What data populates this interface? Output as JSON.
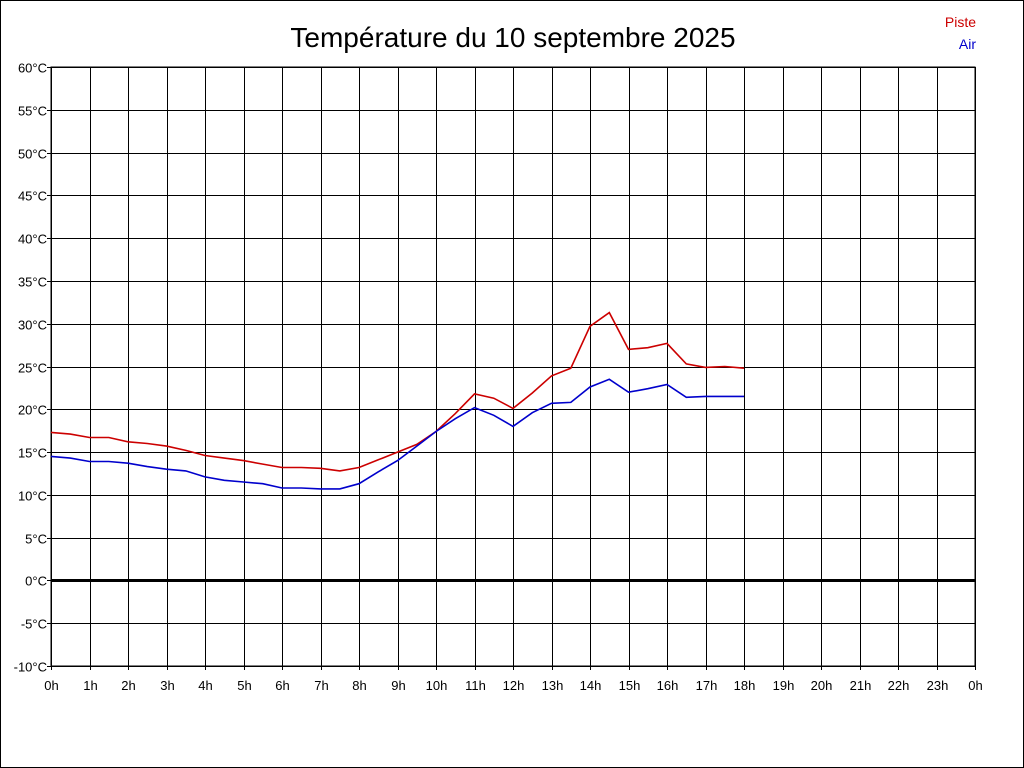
{
  "chart_data": {
    "type": "line",
    "title": "Température du 10 septembre 2025",
    "xlabel": "",
    "ylabel": "",
    "x_tick_labels": [
      "0h",
      "1h",
      "2h",
      "3h",
      "4h",
      "5h",
      "6h",
      "7h",
      "8h",
      "9h",
      "10h",
      "11h",
      "12h",
      "13h",
      "14h",
      "15h",
      "16h",
      "17h",
      "18h",
      "19h",
      "20h",
      "21h",
      "22h",
      "23h",
      "0h"
    ],
    "y_tick_labels": [
      "60°C",
      "55°C",
      "50°C",
      "45°C",
      "40°C",
      "35°C",
      "30°C",
      "25°C",
      "20°C",
      "15°C",
      "10°C",
      "5°C",
      "0°C",
      "-5°C",
      "-10°C"
    ],
    "xlim": [
      0,
      24
    ],
    "ylim": [
      -10,
      60
    ],
    "grid": true,
    "legend_position": "top-right",
    "series": [
      {
        "name": "Piste",
        "color": "#cc0000",
        "x": [
          0,
          0.5,
          1,
          1.5,
          2,
          2.5,
          3,
          3.5,
          4,
          4.5,
          5,
          5.5,
          6,
          6.5,
          7,
          7.5,
          8,
          8.5,
          9,
          9.5,
          10,
          10.5,
          11,
          11.5,
          12,
          12.5,
          13,
          13.5,
          14,
          14.5,
          15,
          15.5,
          16,
          16.5,
          17,
          17.5,
          18
        ],
        "values": [
          17.3,
          17.1,
          16.7,
          16.7,
          16.2,
          16.0,
          15.7,
          15.2,
          14.6,
          14.3,
          14.0,
          13.6,
          13.2,
          13.2,
          13.1,
          12.8,
          13.2,
          14.1,
          15.0,
          15.9,
          17.4,
          19.5,
          21.8,
          21.3,
          20.1,
          21.9,
          23.9,
          24.8,
          29.7,
          31.3,
          27.0,
          27.2,
          27.7,
          25.3,
          24.9,
          25.0,
          24.8
        ]
      },
      {
        "name": "Air",
        "color": "#0000cc",
        "x": [
          0,
          0.5,
          1,
          1.5,
          2,
          2.5,
          3,
          3.5,
          4,
          4.5,
          5,
          5.5,
          6,
          6.5,
          7,
          7.5,
          8,
          8.5,
          9,
          9.5,
          10,
          10.5,
          11,
          11.5,
          12,
          12.5,
          13,
          13.5,
          14,
          14.5,
          15,
          15.5,
          16,
          16.5,
          17,
          17.5,
          18
        ],
        "values": [
          14.5,
          14.3,
          13.9,
          13.9,
          13.7,
          13.3,
          13.0,
          12.8,
          12.1,
          11.7,
          11.5,
          11.3,
          10.8,
          10.8,
          10.7,
          10.7,
          11.3,
          12.7,
          14.0,
          15.7,
          17.4,
          18.9,
          20.2,
          19.3,
          18.0,
          19.6,
          20.7,
          20.8,
          22.6,
          23.5,
          22.0,
          22.4,
          22.9,
          21.4,
          21.5,
          21.5,
          21.5
        ]
      }
    ]
  }
}
